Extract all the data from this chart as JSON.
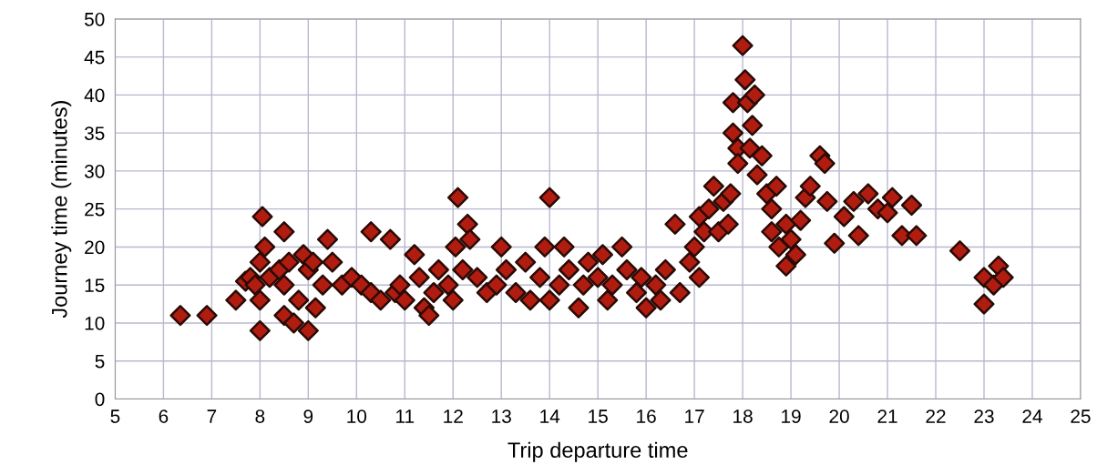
{
  "chart_data": {
    "type": "scatter",
    "xlabel": "Trip departure time",
    "ylabel": "Journey time (minutes)",
    "xlim": [
      5,
      25
    ],
    "xticks": [
      5,
      6,
      7,
      8,
      9,
      10,
      11,
      12,
      13,
      14,
      15,
      16,
      17,
      18,
      19,
      20,
      21,
      22,
      23,
      24,
      25
    ],
    "ylim": [
      0,
      50
    ],
    "yticks": [
      0,
      5,
      10,
      15,
      20,
      25,
      30,
      35,
      40,
      45,
      50
    ],
    "grid": true,
    "marker": "diamond",
    "series": [
      {
        "color": "#b01c10",
        "x": [
          6.35,
          6.9,
          7.5,
          7.7,
          7.8,
          7.9,
          8.0,
          8.0,
          8.0,
          8.05,
          8.1,
          8.2,
          8.4,
          8.5,
          8.5,
          8.5,
          8.6,
          8.7,
          8.8,
          8.9,
          9.0,
          9.0,
          9.1,
          9.15,
          9.3,
          9.4,
          9.5,
          9.7,
          9.9,
          10.1,
          10.3,
          10.3,
          10.5,
          10.7,
          10.8,
          10.9,
          11.0,
          11.2,
          11.3,
          11.4,
          11.5,
          11.6,
          11.7,
          11.9,
          12.0,
          12.05,
          12.1,
          12.2,
          12.3,
          12.35,
          12.5,
          12.7,
          12.9,
          13.0,
          13.1,
          13.3,
          13.5,
          13.6,
          13.8,
          13.9,
          14.0,
          14.0,
          14.2,
          14.3,
          14.4,
          14.6,
          14.7,
          14.8,
          15.0,
          15.1,
          15.2,
          15.3,
          15.5,
          15.6,
          15.8,
          15.9,
          16.0,
          16.2,
          16.3,
          16.4,
          16.6,
          16.7,
          16.9,
          17.0,
          17.1,
          17.1,
          17.2,
          17.3,
          17.4,
          17.5,
          17.6,
          17.7,
          17.75,
          17.8,
          17.8,
          17.9,
          17.9,
          18.0,
          18.05,
          18.1,
          18.15,
          18.2,
          18.25,
          18.3,
          18.4,
          18.5,
          18.6,
          18.6,
          18.7,
          18.75,
          18.9,
          18.9,
          19.0,
          19.1,
          19.2,
          19.3,
          19.4,
          19.6,
          19.7,
          19.75,
          19.9,
          20.1,
          20.3,
          20.4,
          20.6,
          20.8,
          21.0,
          21.1,
          21.3,
          21.5,
          21.6,
          22.5,
          23.0,
          23.0,
          23.2,
          23.3,
          23.4
        ],
        "values": [
          11,
          11,
          13,
          15.5,
          16,
          15,
          9,
          13,
          18,
          24,
          20,
          16,
          17,
          22,
          11,
          15,
          18,
          10,
          13,
          19,
          9,
          17,
          18,
          12,
          15,
          21,
          18,
          15,
          16,
          15,
          14,
          22,
          13,
          21,
          14,
          15,
          13,
          19,
          16,
          12,
          11,
          14,
          17,
          15,
          13,
          20,
          26.5,
          17,
          23,
          21,
          16,
          14,
          15,
          20,
          17,
          14,
          18,
          13,
          16,
          20,
          26.5,
          13,
          15,
          20,
          17,
          12,
          15,
          18,
          16,
          19,
          13,
          15,
          20,
          17,
          14,
          16,
          12,
          15,
          13,
          17,
          23,
          14,
          18,
          20,
          16,
          24,
          22,
          25,
          28,
          22,
          26,
          23,
          27,
          35,
          39,
          33,
          31,
          46.5,
          42,
          39,
          33,
          36,
          40,
          29.5,
          32,
          27,
          25,
          22,
          28,
          20,
          17.5,
          23,
          21,
          19,
          23.5,
          26.5,
          28,
          32,
          31,
          26,
          20.5,
          24,
          26,
          21.5,
          27,
          25,
          24.5,
          26.5,
          21.5,
          25.5,
          21.5,
          19.5,
          16,
          12.5,
          15,
          17.5,
          16
        ]
      }
    ]
  }
}
